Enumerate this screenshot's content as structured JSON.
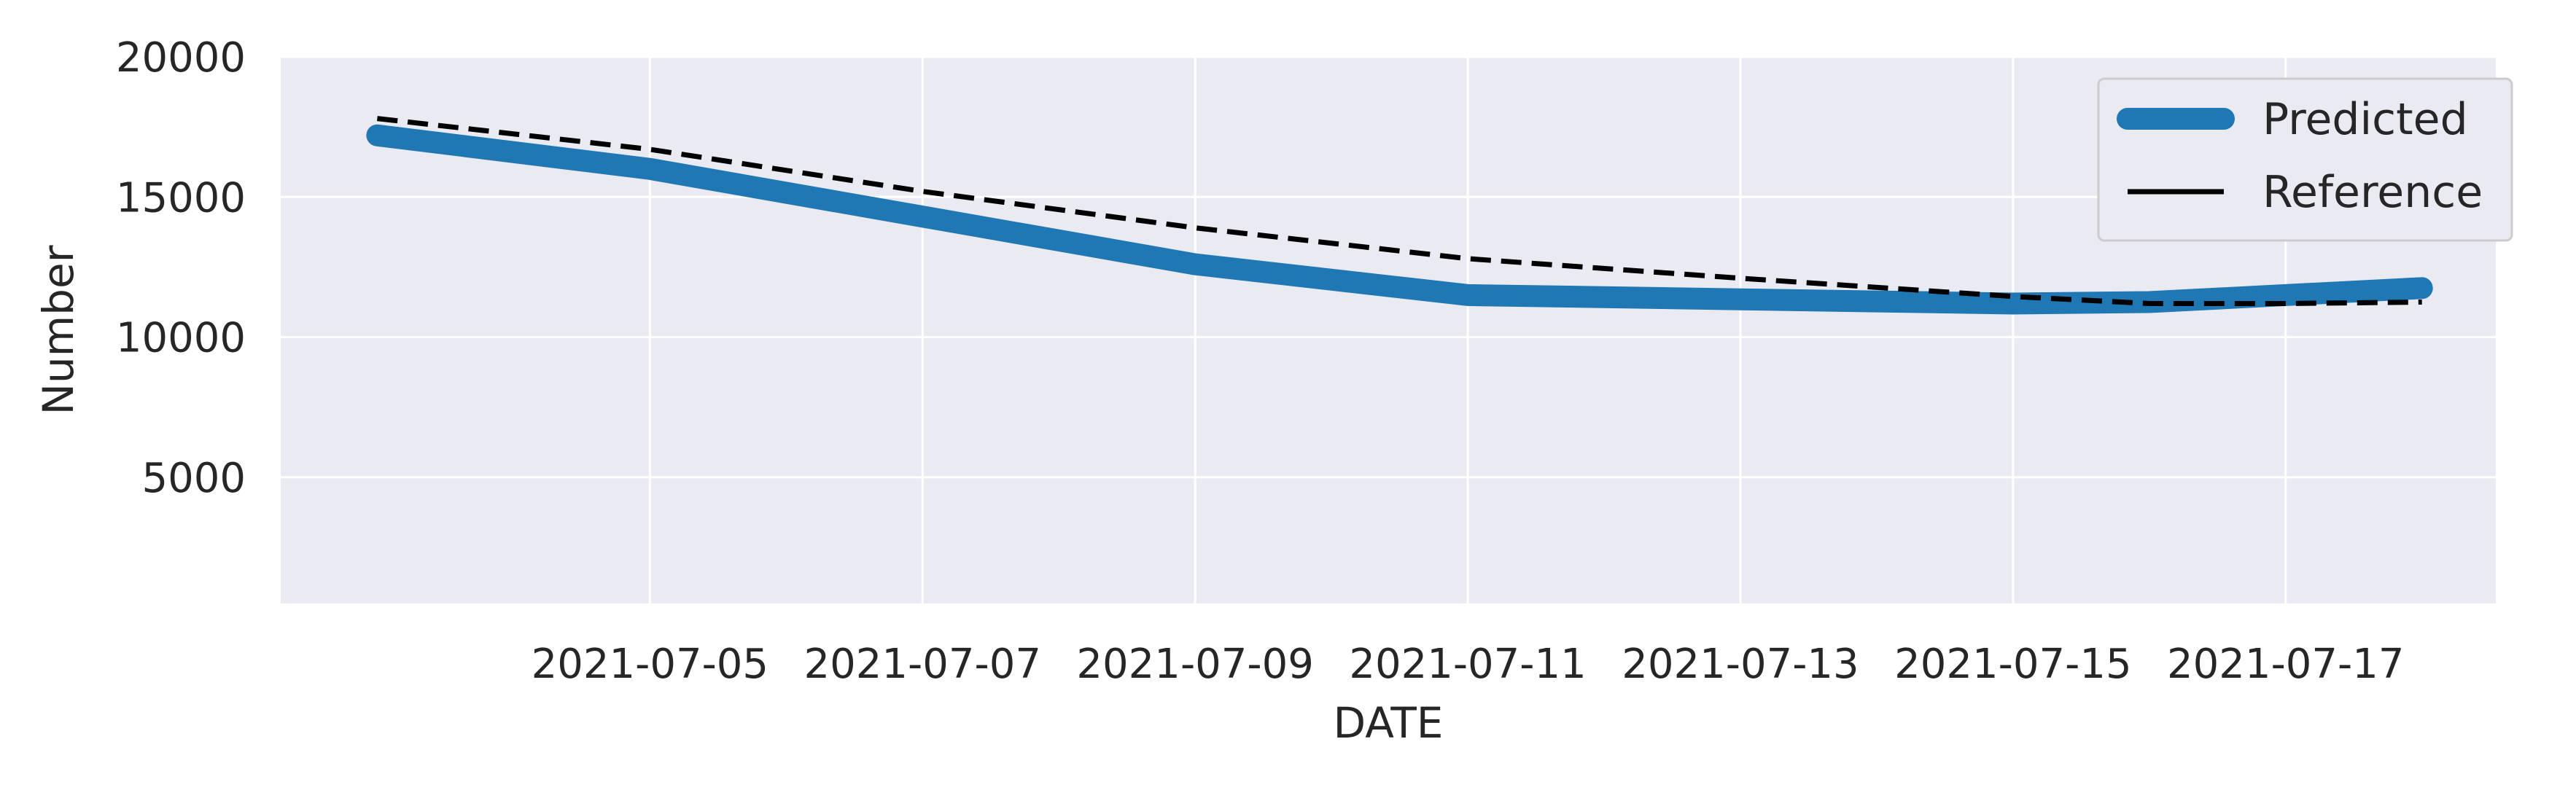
{
  "chart_data": {
    "type": "line",
    "title": "",
    "xlabel": "DATE",
    "ylabel": "Number",
    "x_axis": {
      "type": "date",
      "range": [
        "2021-07-02T07:00",
        "2021-07-18T13:00"
      ],
      "ticks": [
        "2021-07-05",
        "2021-07-07",
        "2021-07-09",
        "2021-07-11",
        "2021-07-13",
        "2021-07-15",
        "2021-07-17"
      ]
    },
    "y_axis": {
      "range": [
        500,
        20000
      ],
      "ticks": [
        5000,
        10000,
        15000,
        20000
      ],
      "tick_labels": [
        "5000",
        "10000",
        "15000",
        "20000"
      ]
    },
    "grid": true,
    "background": "#EAEAF2",
    "legend": {
      "position": "top-right"
    },
    "series": [
      {
        "name": "Predicted",
        "color": "#1F77B4",
        "style": "solid-thick",
        "x": [
          "2021-07-03",
          "2021-07-05",
          "2021-07-07",
          "2021-07-09",
          "2021-07-11",
          "2021-07-13",
          "2021-07-15",
          "2021-07-16",
          "2021-07-17",
          "2021-07-18"
        ],
        "y": [
          17200,
          16000,
          14300,
          12600,
          11500,
          11350,
          11200,
          11250,
          11500,
          11750
        ]
      },
      {
        "name": "Reference",
        "color": "#000000",
        "style": "dashed",
        "x": [
          "2021-07-03",
          "2021-07-05",
          "2021-07-07",
          "2021-07-09",
          "2021-07-11",
          "2021-07-13",
          "2021-07-15",
          "2021-07-16",
          "2021-07-17",
          "2021-07-18"
        ],
        "y": [
          17800,
          16700,
          15200,
          13900,
          12800,
          12100,
          11450,
          11200,
          11200,
          11250
        ]
      }
    ]
  }
}
